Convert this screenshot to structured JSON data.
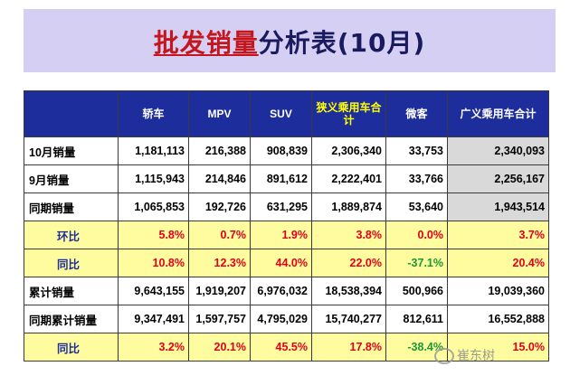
{
  "title": {
    "part1": "批发销量",
    "part2": "分析表(10月)"
  },
  "table": {
    "headers": [
      "",
      "轿车",
      "MPV",
      "SUV",
      "狭义乘用车合计",
      "微客",
      "广义乘用车合计"
    ],
    "rows": [
      {
        "label": "10月销量",
        "values": [
          "1,181,113",
          "216,388",
          "908,839",
          "2,306,340",
          "33,753",
          "2,340,093"
        ]
      },
      {
        "label": "9月销量",
        "values": [
          "1,115,943",
          "214,846",
          "891,612",
          "2,222,401",
          "33,766",
          "2,256,167"
        ]
      },
      {
        "label": "同期销量",
        "values": [
          "1,065,853",
          "192,726",
          "631,295",
          "1,889,874",
          "53,640",
          "1,943,514"
        ]
      },
      {
        "label": "环比",
        "values": [
          "5.8%",
          "0.7%",
          "1.9%",
          "3.8%",
          "0.0%",
          "3.7%"
        ]
      },
      {
        "label": "同比",
        "values": [
          "10.8%",
          "12.3%",
          "44.0%",
          "22.0%",
          "-37.1%",
          "20.4%"
        ]
      },
      {
        "label": "累计销量",
        "values": [
          "9,643,155",
          "1,919,207",
          "6,976,032",
          "18,538,394",
          "500,966",
          "19,039,360"
        ]
      },
      {
        "label": "同期累计销量",
        "values": [
          "9,347,491",
          "1,597,757",
          "4,795,029",
          "15,740,277",
          "812,611",
          "16,552,888"
        ]
      },
      {
        "label": "同比",
        "values": [
          "3.2%",
          "20.1%",
          "45.5%",
          "17.8%",
          "-38.4%",
          "15.0%"
        ]
      }
    ]
  },
  "watermark": "崔东树"
}
